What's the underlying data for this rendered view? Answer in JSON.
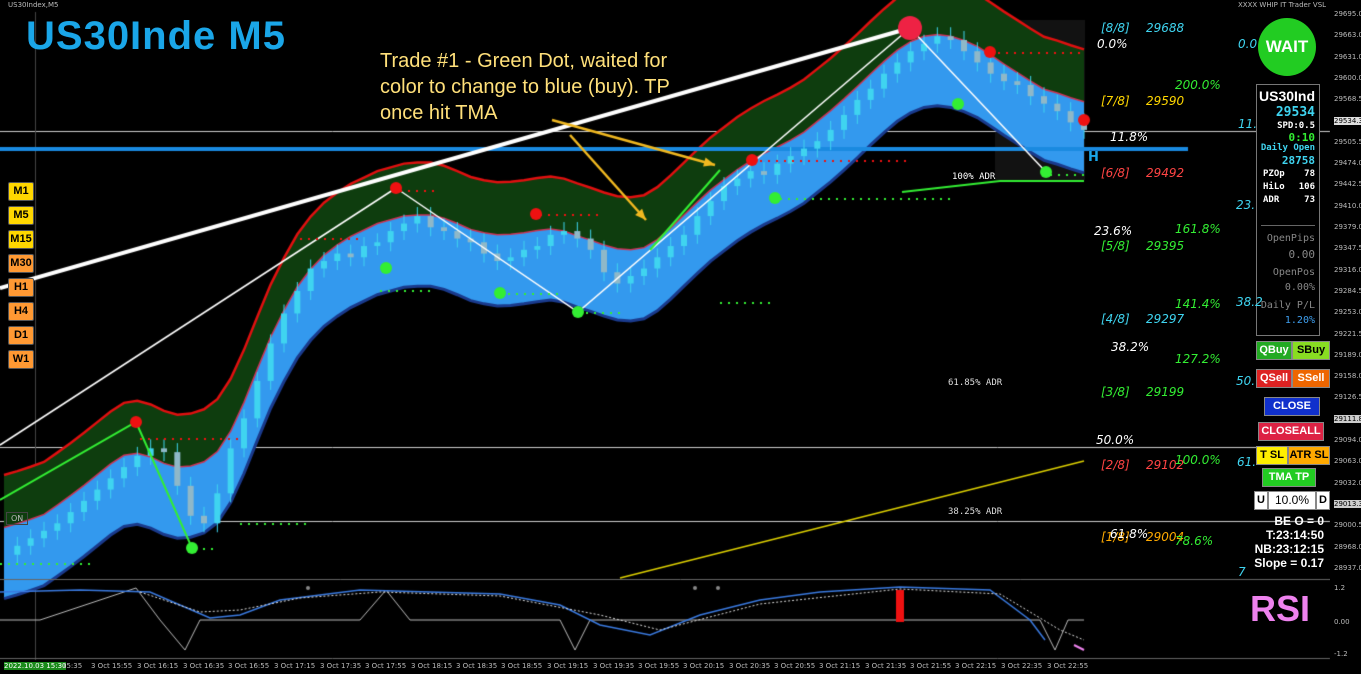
{
  "window": {
    "title": "US30Index,M5",
    "indicator_label": "XXXX WHIP IT Trader VSL"
  },
  "chart_title": "US30Inde M5",
  "annotation": [
    "Trade #1 - Green Dot, waited for",
    "color to change to blue (buy).  TP",
    "once hit TMA"
  ],
  "timeframes": [
    {
      "label": "M1",
      "color": "#ffd700"
    },
    {
      "label": "M5",
      "color": "#ffd700"
    },
    {
      "label": "M15",
      "color": "#ffd700"
    },
    {
      "label": "M30",
      "color": "#ff9933"
    },
    {
      "label": "H1",
      "color": "#ff9933"
    },
    {
      "label": "H4",
      "color": "#ff9933"
    },
    {
      "label": "D1",
      "color": "#ff9933"
    },
    {
      "label": "W1",
      "color": "#ff9933"
    }
  ],
  "murrey": [
    {
      "label": "[8/8]",
      "price": "29688"
    },
    {
      "label": "[7/8]",
      "price": "29590"
    },
    {
      "label": "[6/8]",
      "price": "29492"
    },
    {
      "label": "[5/8]",
      "price": "29395"
    },
    {
      "label": "[4/8]",
      "price": "29297"
    },
    {
      "label": "[3/8]",
      "price": "29199"
    },
    {
      "label": "[2/8]",
      "price": "29102"
    },
    {
      "label": "[1/8]",
      "price": "29004"
    }
  ],
  "fib_left": [
    "0.0%",
    "11.8%",
    "23.6%",
    "38.2%",
    "50.0%",
    "61.8%"
  ],
  "fib_right": [
    "200.0%",
    "161.8%",
    "141.4%",
    "127.2%",
    "100.0%",
    "78.6%"
  ],
  "fib_far": [
    "0.0",
    "11.",
    "23.",
    "38.2",
    "50.",
    "61.",
    "7"
  ],
  "adr": [
    "100% ADR",
    "61.85% ADR",
    "38.25% ADR"
  ],
  "signal": "WAIT",
  "panel": {
    "symbol": "US30Ind",
    "price": "29534",
    "spd": "SPD:0.5",
    "timer": "0:10",
    "daily_open_label": "Daily Open",
    "daily_open": "28758",
    "rows": [
      {
        "k": "PZOp",
        "v": "78"
      },
      {
        "k": "HiLo",
        "v": "106"
      },
      {
        "k": "ADR",
        "v": "73"
      }
    ],
    "open_pips_label": "OpenPips",
    "open_pips": "0.00",
    "open_pos_label": "OpenPos",
    "open_pos": "0.00%",
    "daily_pl_label": "Daily P/L",
    "daily_pl": "1.20%"
  },
  "buttons": {
    "qbuy": "QBuy",
    "sbuy": "SBuy",
    "qsell": "QSell",
    "ssell": "SSell",
    "close": "CLOSE",
    "closeall": "CLOSEALL",
    "tsl": "T SL",
    "atrsl": "ATR SL",
    "tmatp": "TMA TP"
  },
  "risk": {
    "u": "U",
    "value": "10.0%",
    "d": "D"
  },
  "info": [
    "BE O = 0",
    "T:23:14:50",
    "NB:23:12:15",
    "Slope = 0.17"
  ],
  "on_label": "ON",
  "h_label": "H",
  "rsi_label": "RSI",
  "rsi_axis": [
    "1.2",
    "0.00",
    "-1.2"
  ],
  "price_axis": [
    "29695.0",
    "29663.0",
    "29631.0",
    "29600.0",
    "29568.5",
    "29534.3",
    "29505.5",
    "29474.0",
    "29442.5",
    "29410.0",
    "29379.0",
    "29347.5",
    "29316.0",
    "29284.5",
    "29253.0",
    "29221.5",
    "29189.0",
    "29158.0",
    "29126.5",
    "29111.8",
    "29094.0",
    "29063.0",
    "29032.0",
    "29013.3",
    "29000.5",
    "28968.0",
    "28937.0"
  ],
  "time_axis": [
    "2022.10.03 15:30",
    "15:35",
    "3 Oct 15:55",
    "3 Oct 16:15",
    "3 Oct 16:35",
    "3 Oct 16:55",
    "3 Oct 17:15",
    "3 Oct 17:35",
    "3 Oct 17:55",
    "3 Oct 18:15",
    "3 Oct 18:35",
    "3 Oct 18:55",
    "3 Oct 19:15",
    "3 Oct 19:35",
    "3 Oct 19:55",
    "3 Oct 20:15",
    "3 Oct 20:35",
    "3 Oct 20:55",
    "3 Oct 21:15",
    "3 Oct 21:35",
    "3 Oct 21:55",
    "3 Oct 22:15",
    "3 Oct 22:35",
    "3 Oct 22:55"
  ],
  "colors": {
    "title": "#1aa6e8",
    "annotation": "#ffe07a",
    "bull_band": "#0e3d0e",
    "bear_band": "#3399ee",
    "tma_upper": "#e01010",
    "tma_lower": "#1a3a8c",
    "candle": "#3fd4f0",
    "trend": "#ffffff",
    "arrow": "#f0b820",
    "signal_bg": "#22cc22"
  },
  "chart_data": {
    "type": "candlestick",
    "title": "US30Inde M5",
    "y_range": [
      28937,
      29695
    ],
    "closes": [
      28968,
      28980,
      28990,
      29000,
      29010,
      29025,
      29040,
      29055,
      29070,
      29085,
      29100,
      29110,
      29105,
      29060,
      29020,
      29010,
      29050,
      29110,
      29150,
      29200,
      29250,
      29290,
      29320,
      29350,
      29360,
      29370,
      29365,
      29380,
      29385,
      29400,
      29410,
      29420,
      29405,
      29400,
      29390,
      29385,
      29370,
      29360,
      29365,
      29375,
      29380,
      29395,
      29400,
      29390,
      29375,
      29345,
      29330,
      29340,
      29350,
      29365,
      29380,
      29395,
      29420,
      29440,
      29460,
      29470,
      29480,
      29475,
      29490,
      29500,
      29510,
      29520,
      29535,
      29555,
      29575,
      29590,
      29610,
      29625,
      29640,
      29650,
      29660,
      29655,
      29640,
      29625,
      29610,
      29600,
      29595,
      29580,
      29570,
      29560,
      29545,
      29535
    ],
    "sell_signals": [
      29150,
      29455,
      29500,
      29430,
      29625
    ],
    "buy_signals": [
      28970,
      29320,
      29340,
      29520,
      29545
    ]
  }
}
